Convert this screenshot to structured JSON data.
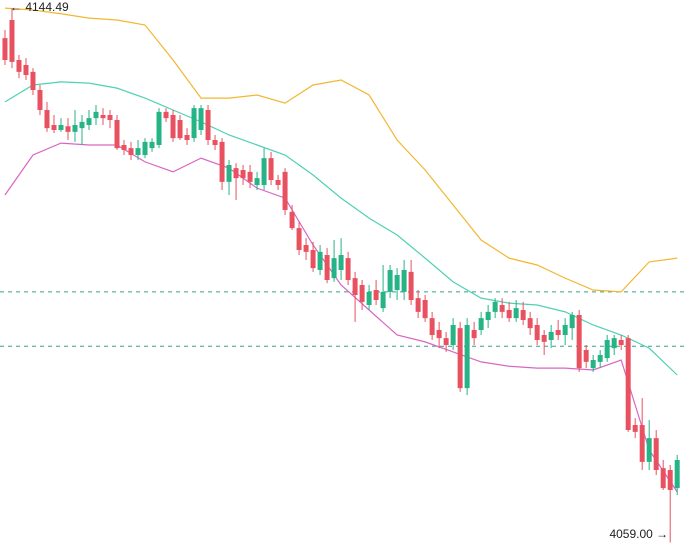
{
  "chart_data": {
    "type": "candlestick",
    "x": [
      1,
      2,
      3,
      4,
      5,
      6,
      7,
      8,
      9,
      10,
      11,
      12,
      13,
      14,
      15,
      16,
      17,
      18,
      19,
      20,
      21,
      22,
      23,
      24,
      25,
      26,
      27,
      28,
      29,
      30,
      31,
      32,
      33,
      34,
      35,
      36,
      37,
      38,
      39,
      40,
      41,
      42,
      43,
      44,
      45,
      46,
      47,
      48,
      49,
      50,
      51,
      52,
      53,
      54,
      55,
      56,
      57,
      58,
      59,
      60,
      61,
      62,
      63,
      64,
      65,
      66,
      67,
      68,
      69,
      70,
      71,
      72,
      73,
      74,
      75,
      76,
      77,
      78,
      79,
      80,
      81,
      82,
      83,
      84,
      85,
      86,
      87,
      88,
      89,
      90,
      91,
      92,
      93,
      94,
      95,
      96,
      97
    ],
    "open": [
      4139.7,
      4142.6,
      4136.2,
      4135.4,
      4134.3,
      4131.4,
      4128.2,
      4125.8,
      4125.0,
      4125.6,
      4124.7,
      4125.3,
      4125.8,
      4126.9,
      4127.4,
      4127.4,
      4126.6,
      4122.6,
      4122.1,
      4121.0,
      4121.0,
      4122.1,
      4122.6,
      4127.9,
      4127.4,
      4126.6,
      4124.2,
      4123.7,
      4125.0,
      4128.2,
      4123.4,
      4123.1,
      4116.7,
      4118.9,
      4118.6,
      4118.3,
      4116.2,
      4116.2,
      4120.5,
      4117.0,
      4118.3,
      4111.9,
      4109.3,
      4106.6,
      4105.8,
      4102.6,
      4105.0,
      4101.3,
      4102.6,
      4104.5,
      4101.3,
      4100.2,
      4097.0,
      4099.4,
      4096.5,
      4099.1,
      4099.4,
      4099.1,
      4102.3,
      4098.1,
      4097.8,
      4094.9,
      4093.0,
      4091.7,
      4090.6,
      4093.3,
      4083.7,
      4093.0,
      4093.0,
      4094.6,
      4095.9,
      4097.0,
      4096.2,
      4094.9,
      4096.2,
      4094.9,
      4093.8,
      4092.2,
      4091.4,
      4093.0,
      4092.2,
      4093.3,
      4095.4,
      4089.8,
      4086.9,
      4087.9,
      4088.5,
      4090.1,
      4091.4,
      4091.7,
      4077.8,
      4077.8,
      4071.9,
      4075.7,
      4070.9,
      4070.6,
      4067.7
    ],
    "high": [
      4141.0,
      4144.49,
      4137.0,
      4136.5,
      4134.9,
      4132.2,
      4129.5,
      4127.4,
      4126.9,
      4126.9,
      4128.2,
      4127.4,
      4128.2,
      4129.0,
      4128.5,
      4128.2,
      4127.4,
      4123.4,
      4123.1,
      4123.4,
      4123.7,
      4123.7,
      4128.5,
      4128.5,
      4128.2,
      4127.4,
      4125.3,
      4129.0,
      4129.0,
      4129.0,
      4124.2,
      4123.7,
      4120.2,
      4119.7,
      4119.4,
      4119.4,
      4118.3,
      4122.1,
      4121.5,
      4117.8,
      4118.9,
      4113.0,
      4110.3,
      4107.7,
      4107.1,
      4106.6,
      4106.1,
      4107.4,
      4107.7,
      4105.5,
      4102.3,
      4101.0,
      4100.2,
      4101.0,
      4103.4,
      4103.4,
      4102.9,
      4104.2,
      4104.2,
      4099.4,
      4098.6,
      4095.9,
      4094.3,
      4092.7,
      4094.9,
      4094.3,
      4094.9,
      4094.3,
      4095.9,
      4097.0,
      4098.1,
      4098.1,
      4097.5,
      4097.8,
      4097.5,
      4095.9,
      4094.9,
      4093.0,
      4093.8,
      4094.6,
      4094.9,
      4095.9,
      4096.2,
      4090.6,
      4089.0,
      4089.8,
      4092.2,
      4092.2,
      4092.2,
      4092.2,
      4078.9,
      4082.1,
      4078.6,
      4077.0,
      4072.2,
      4071.4,
      4073.0
    ],
    "low": [
      4135.4,
      4134.9,
      4133.3,
      4133.0,
      4130.6,
      4127.4,
      4124.7,
      4124.5,
      4124.7,
      4123.4,
      4123.1,
      4122.6,
      4125.0,
      4125.8,
      4125.8,
      4125.3,
      4121.8,
      4121.0,
      4120.2,
      4120.2,
      4120.5,
      4121.5,
      4122.1,
      4126.3,
      4123.1,
      4123.4,
      4122.6,
      4123.1,
      4124.2,
      4122.6,
      4121.8,
      4115.4,
      4114.6,
      4113.8,
      4116.2,
      4115.7,
      4115.4,
      4115.4,
      4116.2,
      4115.4,
      4111.4,
      4109.0,
      4105.0,
      4104.2,
      4102.3,
      4101.8,
      4100.5,
      4100.7,
      4101.0,
      4100.2,
      4094.3,
      4096.2,
      4096.2,
      4097.0,
      4095.9,
      4098.1,
      4097.8,
      4097.8,
      4097.0,
      4094.9,
      4094.3,
      4091.4,
      4090.1,
      4089.5,
      4089.8,
      4083.1,
      4082.6,
      4090.6,
      4092.2,
      4093.3,
      4094.9,
      4094.9,
      4094.3,
      4094.3,
      4093.8,
      4092.2,
      4090.6,
      4089.0,
      4090.1,
      4091.4,
      4090.6,
      4091.4,
      4086.3,
      4086.9,
      4086.3,
      4086.9,
      4087.9,
      4089.0,
      4089.8,
      4076.7,
      4075.7,
      4070.6,
      4070.6,
      4069.8,
      4067.4,
      4059,
      4066.6
    ],
    "close": [
      4136.2,
      4135.9,
      4134.3,
      4133.8,
      4131.4,
      4128.2,
      4125.3,
      4125.0,
      4125.8,
      4124.7,
      4125.8,
      4126.3,
      4126.9,
      4127.9,
      4126.9,
      4126.6,
      4122.1,
      4121.8,
      4121.0,
      4122.1,
      4123.1,
      4123.1,
      4127.9,
      4126.9,
      4123.7,
      4123.7,
      4123.4,
      4128.5,
      4128.5,
      4123.4,
      4122.6,
      4116.7,
      4119.4,
      4117.3,
      4117.3,
      4116.7,
      4117.3,
      4120.5,
      4117.0,
      4116.2,
      4112.2,
      4109.3,
      4105.8,
      4105.5,
      4102.9,
      4105.5,
      4101.0,
      4104.5,
      4105.0,
      4101.0,
      4098.6,
      4097.5,
      4099.1,
      4097.8,
      4099.1,
      4102.6,
      4101.8,
      4102.6,
      4097.8,
      4095.9,
      4094.9,
      4092.2,
      4091.7,
      4090.6,
      4093.8,
      4083.7,
      4093.8,
      4091.7,
      4094.9,
      4095.9,
      4097.5,
      4095.9,
      4094.9,
      4096.5,
      4094.6,
      4093.3,
      4091.4,
      4091.1,
      4092.7,
      4092.2,
      4093.8,
      4095.4,
      4086.9,
      4087.9,
      4088.2,
      4089.0,
      4091.4,
      4091.7,
      4090.6,
      4077.0,
      4076.7,
      4071.9,
      4075.7,
      4070.6,
      4067.7,
      4067.4,
      4072.2
    ],
    "up_color": "#26b386",
    "down_color": "#e8515f",
    "series": [
      {
        "color": "#f2b731",
        "x": [
          1,
          5,
          9,
          13,
          17,
          21,
          25,
          29,
          33,
          37,
          41,
          45,
          49,
          53,
          57,
          61,
          65,
          69,
          73,
          77,
          81,
          85,
          89,
          93,
          97
        ],
        "values": [
          4144.5,
          4144.2,
          4143.6,
          4142.9,
          4142.6,
          4141.8,
          4136.2,
          4130.1,
          4130.1,
          4130.6,
          4129.3,
          4132.2,
          4133.0,
          4130.6,
          4123.4,
          4118.6,
          4113.0,
          4107.4,
          4104.5,
          4103.4,
          4101.3,
          4099.4,
          4099.1,
          4103.9,
          4104.5
        ]
      },
      {
        "color": "#4fd1b4",
        "x": [
          1,
          5,
          9,
          13,
          17,
          21,
          25,
          29,
          33,
          37,
          41,
          45,
          49,
          53,
          57,
          61,
          65,
          69,
          73,
          77,
          81,
          85,
          89,
          93,
          97
        ],
        "values": [
          4129.5,
          4132.2,
          4132.7,
          4132.5,
          4131.7,
          4130.1,
          4128.2,
          4126.3,
          4124.2,
          4122.6,
          4121.0,
          4117.8,
          4114.1,
          4110.9,
          4108.2,
          4104.5,
          4100.7,
          4098.1,
          4097.3,
          4097.0,
          4095.9,
          4093.8,
          4092.2,
          4090.1,
          4085.8
        ]
      },
      {
        "color": "#d966c4",
        "x": [
          1,
          5,
          9,
          13,
          17,
          21,
          25,
          29,
          33,
          37,
          41,
          45,
          49,
          53,
          57,
          61,
          65,
          69,
          73,
          77,
          81,
          85,
          89,
          93,
          97
        ],
        "values": [
          4114.6,
          4121.0,
          4122.9,
          4122.6,
          4122.6,
          4119.9,
          4118.3,
          4120.5,
          4118.9,
          4115.7,
          4114.1,
          4106.6,
          4100.2,
          4096.2,
          4092.2,
          4091.1,
          4089.5,
          4087.9,
          4087.2,
          4086.9,
          4086.9,
          4086.6,
          4088.2,
          4073.8,
          4067.1
        ]
      }
    ],
    "hlines": [
      4099.1,
      4090.4
    ],
    "hline_color": "#3a9e8c",
    "max_label": 4144.49,
    "min_label": {
      "value": 4059,
      "label": "4059.00"
    },
    "xlim": [
      0.29,
      98.4
    ],
    "ylim": [
      4058.92,
      4145.8
    ]
  }
}
